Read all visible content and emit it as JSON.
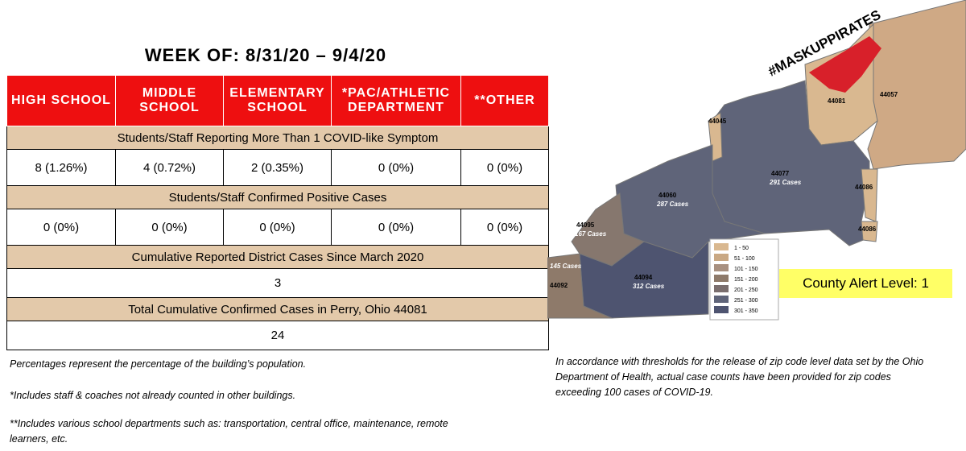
{
  "header": {
    "title": "WEEK OF:  8/31/20 – 9/4/20"
  },
  "table": {
    "columns": [
      "HIGH SCHOOL",
      "MIDDLE SCHOOL",
      "ELEMENTARY SCHOOL",
      "*PAC/ATHLETIC DEPARTMENT",
      "**OTHER"
    ],
    "sections": [
      {
        "label": "Students/Staff Reporting More Than 1 COVID-like Symptom",
        "values": [
          "8 (1.26%)",
          "4 (0.72%)",
          "2 (0.35%)",
          "0 (0%)",
          "0 (0%)"
        ]
      },
      {
        "label": "Students/Staff Confirmed Positive Cases",
        "values": [
          "0 (0%)",
          "0 (0%)",
          "0 (0%)",
          "0 (0%)",
          "0 (0%)"
        ]
      },
      {
        "label": "Cumulative Reported District Cases Since March 2020",
        "values": [
          "3"
        ]
      },
      {
        "label": "Total Cumulative Confirmed Cases in Perry, Ohio 44081",
        "values": [
          "24"
        ]
      }
    ]
  },
  "notes": [
    "Percentages represent the percentage of the building’s population.",
    "*Includes staff & coaches not already counted in other buildings.",
    "**Includes various school departments such as: transportation, central office, maintenance, remote learners, etc."
  ],
  "map": {
    "hashtag": "#MASKUPPIRATES",
    "zips": [
      {
        "zip": "44081"
      },
      {
        "zip": "44057"
      },
      {
        "zip": "44045"
      },
      {
        "zip": "44077",
        "cases": "291 Cases"
      },
      {
        "zip": "44086"
      },
      {
        "zip": "44086"
      },
      {
        "zip": "44060",
        "cases": "287 Cases"
      },
      {
        "zip": "44095",
        "cases": "167 Cases"
      },
      {
        "zip": "44094",
        "cases": "312 Cases"
      },
      {
        "zip": "44092",
        "cases": "145 Cases"
      }
    ],
    "legend": [
      "1 - 50",
      "51 - 100",
      "101 - 150",
      "151 - 200",
      "201 - 250",
      "251 - 300",
      "301 - 350"
    ],
    "alert": "County Alert Level:  1",
    "note": "In accordance with thresholds for the release of zip code level data set by the Ohio Department of Health, actual case counts have been provided for zip codes exceeding 100 cases of COVID-19."
  }
}
